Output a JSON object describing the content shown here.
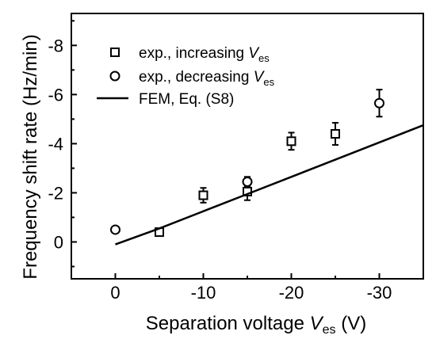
{
  "chart_data": {
    "type": "scatter",
    "xlabel": {
      "text": "Separation voltage ",
      "var": "V",
      "sub": "es",
      "unit": " (V)"
    },
    "ylabel": "Frequency shift rate (Hz/min)",
    "xlim": [
      5,
      -35
    ],
    "ylim": [
      1.5,
      -9.3
    ],
    "x_ticks": [
      0,
      -10,
      -20,
      -30
    ],
    "x_tick_labels": [
      "0",
      "-10",
      "-20",
      "-30"
    ],
    "y_ticks": [
      0,
      -2,
      -4,
      -6,
      -8
    ],
    "y_tick_labels": [
      "0",
      "-2",
      "-4",
      "-6",
      "-8"
    ],
    "grid": false,
    "legend_position": "top-left",
    "series": [
      {
        "name": "exp., increasing ",
        "name_var": "V",
        "name_sub": "es",
        "marker": "square",
        "points": [
          {
            "x": -5,
            "y": -0.4,
            "err": 0.15
          },
          {
            "x": -10,
            "y": -1.9,
            "err": 0.3
          },
          {
            "x": -15,
            "y": -2.05,
            "err": 0.35
          },
          {
            "x": -20,
            "y": -4.1,
            "err": 0.35
          },
          {
            "x": -25,
            "y": -4.4,
            "err": 0.45
          }
        ]
      },
      {
        "name": "exp., decreasing ",
        "name_var": "V",
        "name_sub": "es",
        "marker": "circle",
        "points": [
          {
            "x": 0,
            "y": -0.5,
            "err": 0.1
          },
          {
            "x": -15,
            "y": -2.45,
            "err": 0.2
          },
          {
            "x": -30,
            "y": -5.65,
            "err": 0.55
          }
        ]
      },
      {
        "name": "FEM, Eq. (S8)",
        "marker": "line",
        "points": [
          {
            "x": 0,
            "y": 0.1
          },
          {
            "x": -5,
            "y": -0.55
          },
          {
            "x": -10,
            "y": -1.25
          },
          {
            "x": -15,
            "y": -1.95
          },
          {
            "x": -20,
            "y": -2.65
          },
          {
            "x": -25,
            "y": -3.35
          },
          {
            "x": -30,
            "y": -4.05
          },
          {
            "x": -35,
            "y": -4.75
          }
        ]
      }
    ]
  }
}
